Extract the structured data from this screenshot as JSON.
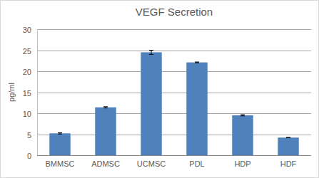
{
  "chart_data": {
    "type": "bar",
    "title": "VEGF Secretion",
    "y_label": "pg/ml",
    "categories": [
      "BMMSC",
      "ADMSC",
      "UCMSC",
      "PDL",
      "HDP",
      "HDF"
    ],
    "values": [
      5.2,
      11.4,
      24.5,
      22.1,
      9.5,
      4.2
    ],
    "errors": [
      0.15,
      0.15,
      0.5,
      0.1,
      0.15,
      0.05
    ],
    "color": "#4f81bd",
    "ylim": [
      0,
      30
    ],
    "yticks": [
      0,
      5,
      10,
      15,
      20,
      25,
      30
    ],
    "grid": true
  }
}
